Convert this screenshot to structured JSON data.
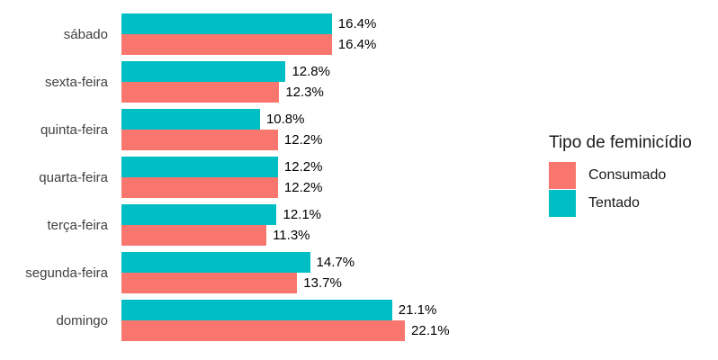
{
  "chart_data": {
    "type": "bar",
    "orientation": "horizontal",
    "title": "",
    "legend_title": "Tipo de feminicídio",
    "legend_position": "right",
    "grid": false,
    "value_suffix": "%",
    "xlim": [
      0,
      23.5
    ],
    "categories": [
      "sábado",
      "sexta-feira",
      "quinta-feira",
      "quarta-feira",
      "terça-feira",
      "segunda-feira",
      "domingo"
    ],
    "series": [
      {
        "name": "Tentado",
        "color": "#00BFC4",
        "values": [
          16.4,
          12.8,
          10.8,
          12.2,
          12.1,
          14.7,
          21.1
        ],
        "labels": [
          "16.4%",
          "12.8%",
          "10.8%",
          "12.2%",
          "12.1%",
          "14.7%",
          "21.1%"
        ]
      },
      {
        "name": "Consumado",
        "color": "#F8766D",
        "values": [
          16.4,
          12.3,
          12.2,
          12.2,
          11.3,
          13.7,
          22.1
        ],
        "labels": [
          "16.4%",
          "12.3%",
          "12.2%",
          "12.2%",
          "11.3%",
          "13.7%",
          "22.1%"
        ]
      }
    ]
  },
  "legend": {
    "title": "Tipo de feminicídio",
    "items": [
      {
        "label": "Consumado",
        "color": "#F8766D"
      },
      {
        "label": "Tentado",
        "color": "#00BFC4"
      }
    ]
  }
}
